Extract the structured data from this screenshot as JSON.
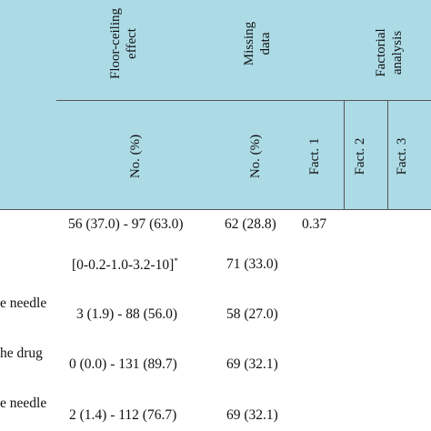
{
  "header": {
    "floor_ceiling_line1": "Floor-ceiling",
    "floor_ceiling_line2": "effect",
    "missing_line1": "Missing",
    "missing_line2": "data",
    "factorial_line1": "Factorial",
    "factorial_line2": "analysis",
    "no_pct_floor": "No. (%)",
    "no_pct_missing": "No. (%)",
    "fact1": "Fact. 1",
    "fact2": "Fact. 2",
    "fact3": "Fact. 3"
  },
  "rows": [
    {
      "label": "",
      "floor": "56 (37.0) - 97 (63.0)",
      "missing": "62 (28.8)",
      "fact1": "0.37",
      "note": ""
    },
    {
      "label": "",
      "floor": "[0-0.2-1.0-3.2-10]",
      "missing": "71 (33.0)",
      "fact1": "",
      "note": "*"
    },
    {
      "label": "e needle",
      "floor": "3 (1.9) - 88 (56.0)",
      "missing": "58 (27.0)",
      "fact1": "",
      "note": ""
    },
    {
      "label": "he drug",
      "floor": "0 (0.0) - 131 (89.7)",
      "missing": "69 (32.1)",
      "fact1": "",
      "note": ""
    },
    {
      "label": "e needle",
      "floor": "2 (1.4) - 112 (76.7)",
      "missing": "69 (32.1)",
      "fact1": "",
      "note": ""
    }
  ]
}
